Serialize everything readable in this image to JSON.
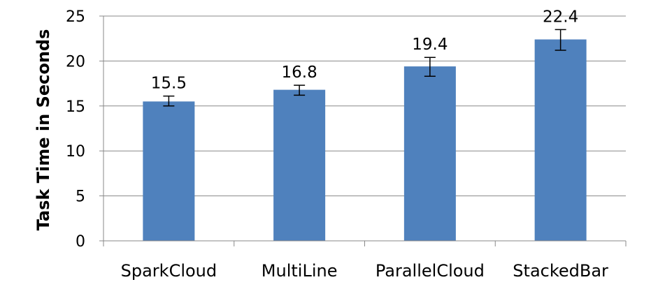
{
  "chart_data": {
    "type": "bar",
    "title": "",
    "xlabel": "",
    "ylabel": "Task Time in Seconds",
    "ylim": [
      0,
      25
    ],
    "yticks": [
      0,
      5,
      10,
      15,
      20,
      25
    ],
    "grid": true,
    "legend": "none",
    "categories": [
      "SparkCloud",
      "MultiLine",
      "ParallelCloud",
      "StackedBar"
    ],
    "values": [
      15.5,
      16.8,
      19.4,
      22.4
    ],
    "data_labels": [
      "15.5",
      "16.8",
      "19.4",
      "22.4"
    ],
    "error_low": [
      15.0,
      16.2,
      18.3,
      21.2
    ],
    "error_high": [
      16.1,
      17.3,
      20.4,
      23.5
    ],
    "colors": {
      "bar": "#4F81BD",
      "grid": "#888888",
      "axis": "#888888",
      "error": "#000000"
    }
  }
}
